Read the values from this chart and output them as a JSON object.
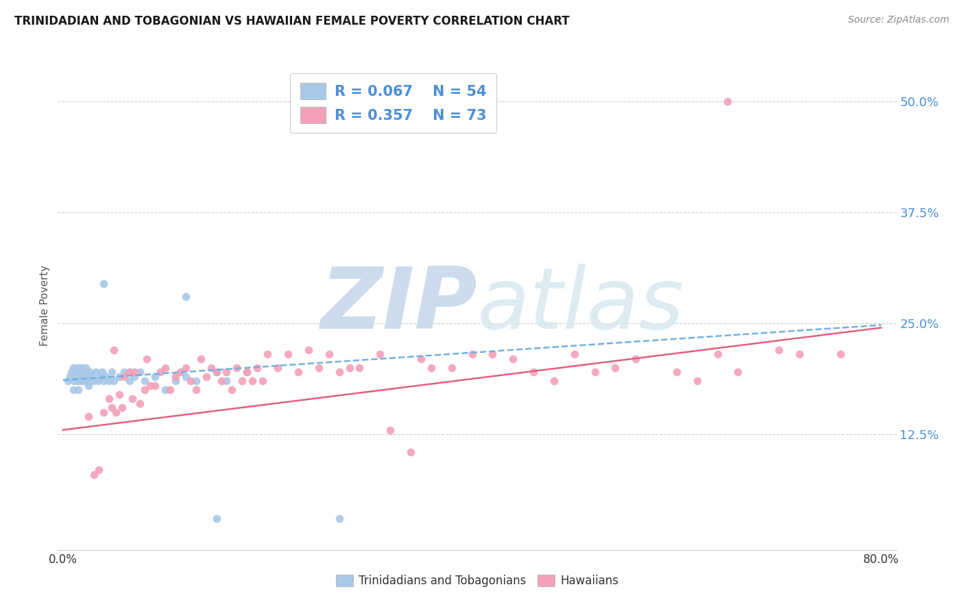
{
  "title": "TRINIDADIAN AND TOBAGONIAN VS HAWAIIAN FEMALE POVERTY CORRELATION CHART",
  "source": "Source: ZipAtlas.com",
  "ylabel": "Female Poverty",
  "ytick_labels": [
    "12.5%",
    "25.0%",
    "37.5%",
    "50.0%"
  ],
  "ytick_values": [
    0.125,
    0.25,
    0.375,
    0.5
  ],
  "xmin": -0.005,
  "xmax": 0.815,
  "ymin": -0.005,
  "ymax": 0.545,
  "color_blue": "#a8c8e8",
  "color_pink": "#f4a0b8",
  "color_blue_text": "#4a90d9",
  "line_blue": "#70b0e0",
  "line_pink": "#e06080",
  "watermark_zip": "ZIP",
  "watermark_atlas": "atlas",
  "watermark_color": "#ccdcec",
  "label_trinidadian": "Trinidadians and Tobagonians",
  "label_hawaiian": "Hawaiians",
  "blue_x": [
    0.005,
    0.007,
    0.008,
    0.01,
    0.01,
    0.011,
    0.012,
    0.013,
    0.014,
    0.015,
    0.015,
    0.016,
    0.017,
    0.018,
    0.018,
    0.019,
    0.02,
    0.021,
    0.022,
    0.022,
    0.023,
    0.024,
    0.025,
    0.026,
    0.027,
    0.028,
    0.03,
    0.032,
    0.034,
    0.036,
    0.038,
    0.04,
    0.042,
    0.045,
    0.048,
    0.05,
    0.055,
    0.06,
    0.065,
    0.07,
    0.075,
    0.08,
    0.09,
    0.1,
    0.11,
    0.12,
    0.13,
    0.15,
    0.16,
    0.18,
    0.04,
    0.12,
    0.15,
    0.27
  ],
  "blue_y": [
    0.185,
    0.19,
    0.195,
    0.175,
    0.2,
    0.185,
    0.19,
    0.195,
    0.185,
    0.175,
    0.2,
    0.19,
    0.185,
    0.195,
    0.2,
    0.185,
    0.19,
    0.185,
    0.195,
    0.2,
    0.185,
    0.19,
    0.18,
    0.195,
    0.185,
    0.19,
    0.185,
    0.195,
    0.185,
    0.19,
    0.195,
    0.185,
    0.19,
    0.185,
    0.195,
    0.185,
    0.19,
    0.195,
    0.185,
    0.19,
    0.195,
    0.185,
    0.19,
    0.175,
    0.185,
    0.19,
    0.185,
    0.195,
    0.185,
    0.195,
    0.295,
    0.28,
    0.03,
    0.03
  ],
  "pink_x": [
    0.025,
    0.03,
    0.035,
    0.04,
    0.045,
    0.048,
    0.05,
    0.052,
    0.055,
    0.058,
    0.06,
    0.065,
    0.068,
    0.07,
    0.075,
    0.08,
    0.082,
    0.085,
    0.09,
    0.095,
    0.1,
    0.105,
    0.11,
    0.115,
    0.12,
    0.125,
    0.13,
    0.135,
    0.14,
    0.145,
    0.15,
    0.155,
    0.16,
    0.165,
    0.17,
    0.175,
    0.18,
    0.185,
    0.19,
    0.195,
    0.2,
    0.21,
    0.22,
    0.23,
    0.24,
    0.25,
    0.26,
    0.27,
    0.28,
    0.29,
    0.31,
    0.32,
    0.34,
    0.35,
    0.36,
    0.38,
    0.4,
    0.42,
    0.44,
    0.46,
    0.48,
    0.5,
    0.52,
    0.54,
    0.56,
    0.6,
    0.62,
    0.64,
    0.66,
    0.7,
    0.72,
    0.76,
    0.65
  ],
  "pink_y": [
    0.145,
    0.08,
    0.085,
    0.15,
    0.165,
    0.155,
    0.22,
    0.15,
    0.17,
    0.155,
    0.19,
    0.195,
    0.165,
    0.195,
    0.16,
    0.175,
    0.21,
    0.18,
    0.18,
    0.195,
    0.2,
    0.175,
    0.19,
    0.195,
    0.2,
    0.185,
    0.175,
    0.21,
    0.19,
    0.2,
    0.195,
    0.185,
    0.195,
    0.175,
    0.2,
    0.185,
    0.195,
    0.185,
    0.2,
    0.185,
    0.215,
    0.2,
    0.215,
    0.195,
    0.22,
    0.2,
    0.215,
    0.195,
    0.2,
    0.2,
    0.215,
    0.13,
    0.105,
    0.21,
    0.2,
    0.2,
    0.215,
    0.215,
    0.21,
    0.195,
    0.185,
    0.215,
    0.195,
    0.2,
    0.21,
    0.195,
    0.185,
    0.215,
    0.195,
    0.22,
    0.215,
    0.215,
    0.5
  ],
  "blue_line_x": [
    0.0,
    0.8
  ],
  "blue_line_y": [
    0.186,
    0.248
  ],
  "pink_line_x": [
    0.0,
    0.8
  ],
  "pink_line_y": [
    0.13,
    0.245
  ]
}
